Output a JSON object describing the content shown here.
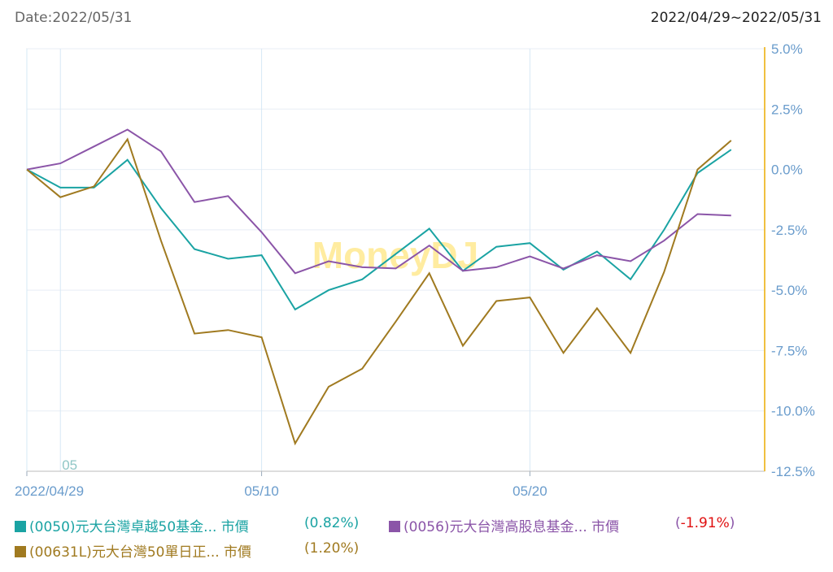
{
  "header": {
    "date_label": "Date:2022/05/31",
    "range_label": "2022/04/29~2022/05/31"
  },
  "watermark": "MoneyDJ",
  "colors": {
    "axis_right": "#f0c040",
    "grid": "#e8eef5",
    "tick_text": "#6a9ccc"
  },
  "chart_data": {
    "type": "line",
    "x": [
      "04/29",
      "05/02",
      "05/03",
      "05/04",
      "05/05",
      "05/06",
      "05/09",
      "05/10",
      "05/11",
      "05/12",
      "05/13",
      "05/16",
      "05/17",
      "05/18",
      "05/19",
      "05/20",
      "05/23",
      "05/24",
      "05/25",
      "05/26",
      "05/27",
      "05/30",
      "05/31"
    ],
    "xticks": [
      {
        "label": "2022/04/29",
        "x": "04/29"
      },
      {
        "label": "05/10",
        "x": "05/10"
      },
      {
        "label": "05/20",
        "x": "05/20"
      }
    ],
    "minor_label": {
      "text": "05",
      "x": "05/02"
    },
    "yticks": [
      5.0,
      2.5,
      0.0,
      -2.5,
      -5.0,
      -7.5,
      -10.0,
      -12.5
    ],
    "ytick_labels": [
      "5.0%",
      "2.5%",
      "0.0%",
      "-2.5%",
      "-5.0%",
      "-7.5%",
      "-10.0%",
      "-12.5%"
    ],
    "ylim": [
      -12.5,
      5.0
    ],
    "y_axis_side": "right",
    "grid": true,
    "series": [
      {
        "name": "(0050)元大台灣卓越50基金... 市價",
        "color": "#1aa3a3",
        "change": "(0.82%)",
        "change_color": "#1aa3a3",
        "values": [
          0.0,
          -0.75,
          -0.75,
          0.4,
          -1.6,
          -3.3,
          -3.7,
          -3.55,
          -5.8,
          -5.0,
          -4.55,
          -3.5,
          -2.45,
          -4.2,
          -3.2,
          -3.05,
          -4.15,
          -3.4,
          -4.55,
          -2.5,
          -0.15,
          0.82,
          null
        ]
      },
      {
        "name": "(0056)元大台灣高股息基金... 市價",
        "color": "#8b55a8",
        "change": "(-1.91%)",
        "change_color": "#e01010",
        "values": [
          0.0,
          0.25,
          0.95,
          1.65,
          0.75,
          -1.35,
          -1.1,
          -2.6,
          -4.3,
          -3.8,
          -4.05,
          -4.1,
          -3.15,
          -4.2,
          -4.05,
          -3.6,
          -4.1,
          -3.55,
          -3.8,
          -2.95,
          -1.85,
          -1.91,
          null
        ]
      },
      {
        "name": "(00631L)元大台灣50單日正... 市價",
        "color": "#a07a20",
        "change": "(1.20%)",
        "change_color": "#a07a20",
        "values": [
          0.0,
          -1.15,
          -0.7,
          1.25,
          -2.95,
          -6.8,
          -6.65,
          -6.95,
          -11.35,
          -9.0,
          -8.25,
          -6.3,
          -4.3,
          -7.3,
          -5.45,
          -5.3,
          -7.6,
          -5.75,
          -7.6,
          -4.25,
          0.0,
          1.2,
          null
        ]
      }
    ]
  }
}
